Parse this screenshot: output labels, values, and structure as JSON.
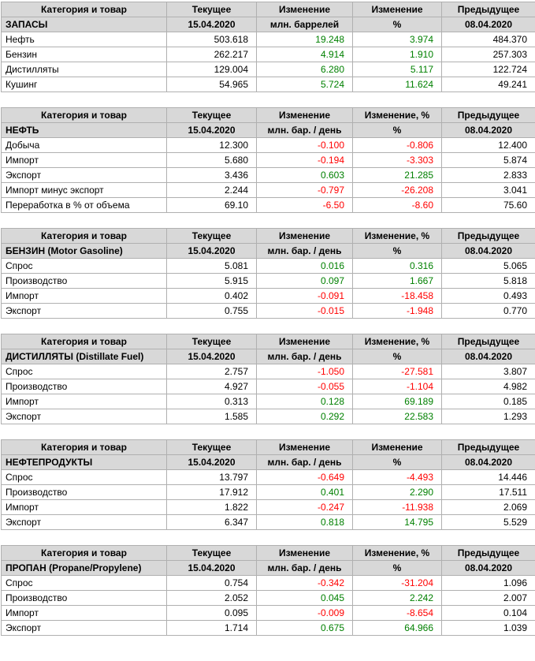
{
  "colors": {
    "page_bg": "#ffffff",
    "header_bg": "#d8d8d8",
    "border": "#b0b0b0",
    "text": "#000000",
    "positive": "#008000",
    "negative": "#ff0000"
  },
  "chart_data": [
    {
      "type": "table",
      "id": "inventories",
      "title": "ЗАПАСЫ",
      "column_headers": [
        "Категория и товар",
        "Текущее",
        "Изменение",
        "Изменение",
        "Предыдущее"
      ],
      "meta_row": {
        "current_date": "15.04.2020",
        "unit": "млн. баррелей",
        "pct_symbol": "%",
        "previous_date": "08.04.2020"
      },
      "rows": [
        {
          "label": "Нефть",
          "current": "503.618",
          "change": "19.248",
          "change_pct": "3.974",
          "previous": "484.370"
        },
        {
          "label": "Бензин",
          "current": "262.217",
          "change": "4.914",
          "change_pct": "1.910",
          "previous": "257.303"
        },
        {
          "label": "Дистилляты",
          "current": "129.004",
          "change": "6.280",
          "change_pct": "5.117",
          "previous": "122.724"
        },
        {
          "label": "Кушинг",
          "current": "54.965",
          "change": "5.724",
          "change_pct": "11.624",
          "previous": "49.241"
        }
      ]
    },
    {
      "type": "table",
      "id": "crude-oil",
      "title": "НЕФТЬ",
      "column_headers": [
        "Категория и товар",
        "Текущее",
        "Изменение",
        "Изменение, %",
        "Предыдущее"
      ],
      "meta_row": {
        "current_date": "15.04.2020",
        "unit": "млн. бар. / день",
        "pct_symbol": "%",
        "previous_date": "08.04.2020"
      },
      "rows": [
        {
          "label": "Добыча",
          "current": "12.300",
          "change": "-0.100",
          "change_pct": "-0.806",
          "previous": "12.400"
        },
        {
          "label": "Импорт",
          "current": "5.680",
          "change": "-0.194",
          "change_pct": "-3.303",
          "previous": "5.874"
        },
        {
          "label": "Экспорт",
          "current": "3.436",
          "change": "0.603",
          "change_pct": "21.285",
          "previous": "2.833"
        },
        {
          "label": "Импорт минус экспорт",
          "current": "2.244",
          "change": "-0.797",
          "change_pct": "-26.208",
          "previous": "3.041"
        },
        {
          "label": "Переработка в % от объема",
          "current": "69.10",
          "change": "-6.50",
          "change_pct": "-8.60",
          "previous": "75.60"
        }
      ]
    },
    {
      "type": "table",
      "id": "gasoline",
      "title": "БЕНЗИН (Motor Gasoline)",
      "column_headers": [
        "Категория и товар",
        "Текущее",
        "Изменение",
        "Изменение, %",
        "Предыдущее"
      ],
      "meta_row": {
        "current_date": "15.04.2020",
        "unit": "млн. бар. / день",
        "pct_symbol": "%",
        "previous_date": "08.04.2020"
      },
      "rows": [
        {
          "label": "Спрос",
          "current": "5.081",
          "change": "0.016",
          "change_pct": "0.316",
          "previous": "5.065"
        },
        {
          "label": "Производство",
          "current": "5.915",
          "change": "0.097",
          "change_pct": "1.667",
          "previous": "5.818"
        },
        {
          "label": "Импорт",
          "current": "0.402",
          "change": "-0.091",
          "change_pct": "-18.458",
          "previous": "0.493"
        },
        {
          "label": "Экспорт",
          "current": "0.755",
          "change": "-0.015",
          "change_pct": "-1.948",
          "previous": "0.770"
        }
      ]
    },
    {
      "type": "table",
      "id": "distillate",
      "title": "ДИСТИЛЛЯТЫ (Distillate Fuel)",
      "column_headers": [
        "Категория и товар",
        "Текущее",
        "Изменение",
        "Изменение, %",
        "Предыдущее"
      ],
      "meta_row": {
        "current_date": "15.04.2020",
        "unit": "млн. бар. / день",
        "pct_symbol": "%",
        "previous_date": "08.04.2020"
      },
      "rows": [
        {
          "label": "Спрос",
          "current": "2.757",
          "change": "-1.050",
          "change_pct": "-27.581",
          "previous": "3.807"
        },
        {
          "label": "Производство",
          "current": "4.927",
          "change": "-0.055",
          "change_pct": "-1.104",
          "previous": "4.982"
        },
        {
          "label": "Импорт",
          "current": "0.313",
          "change": "0.128",
          "change_pct": "69.189",
          "previous": "0.185"
        },
        {
          "label": "Экспорт",
          "current": "1.585",
          "change": "0.292",
          "change_pct": "22.583",
          "previous": "1.293"
        }
      ]
    },
    {
      "type": "table",
      "id": "petroleum-products",
      "title": "НЕФТЕПРОДУКТЫ",
      "column_headers": [
        "Категория и товар",
        "Текущее",
        "Изменение",
        "Изменение",
        "Предыдущее"
      ],
      "meta_row": {
        "current_date": "15.04.2020",
        "unit": "млн. бар. / день",
        "pct_symbol": "%",
        "previous_date": "08.04.2020"
      },
      "rows": [
        {
          "label": "Спрос",
          "current": "13.797",
          "change": "-0.649",
          "change_pct": "-4.493",
          "previous": "14.446"
        },
        {
          "label": "Производство",
          "current": "17.912",
          "change": "0.401",
          "change_pct": "2.290",
          "previous": "17.511"
        },
        {
          "label": "Импорт",
          "current": "1.822",
          "change": "-0.247",
          "change_pct": "-11.938",
          "previous": "2.069"
        },
        {
          "label": "Экспорт",
          "current": "6.347",
          "change": "0.818",
          "change_pct": "14.795",
          "previous": "5.529"
        }
      ]
    },
    {
      "type": "table",
      "id": "propane",
      "title": "ПРОПАН (Propane/Propylene)",
      "column_headers": [
        "Категория и товар",
        "Текущее",
        "Изменение",
        "Изменение, %",
        "Предыдущее"
      ],
      "meta_row": {
        "current_date": "15.04.2020",
        "unit": "млн. бар. / день",
        "pct_symbol": "%",
        "previous_date": "08.04.2020"
      },
      "rows": [
        {
          "label": "Спрос",
          "current": "0.754",
          "change": "-0.342",
          "change_pct": "-31.204",
          "previous": "1.096"
        },
        {
          "label": "Производство",
          "current": "2.052",
          "change": "0.045",
          "change_pct": "2.242",
          "previous": "2.007"
        },
        {
          "label": "Импорт",
          "current": "0.095",
          "change": "-0.009",
          "change_pct": "-8.654",
          "previous": "0.104"
        },
        {
          "label": "Экспорт",
          "current": "1.714",
          "change": "0.675",
          "change_pct": "64.966",
          "previous": "1.039"
        }
      ]
    }
  ]
}
